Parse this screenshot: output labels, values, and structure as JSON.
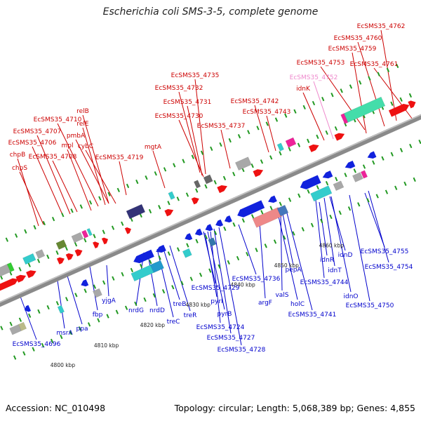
{
  "title": "Escherichia coli SMS-3-5, complete genome",
  "footer": {
    "accession": "Accession: NC_010498",
    "summary": "Topology: circular; Length: 5,068,389 bp; Genes: 4,855"
  },
  "colors": {
    "forward_label": "#cc0000",
    "reverse_label": "#0000cc",
    "highlight_label": "#ee88cc",
    "backbone": "#8a8a8a",
    "tick": "#229922"
  },
  "kbp_ticks": [
    "4800 kbp",
    "4810 kbp",
    "4820 kbp",
    "4830 kbp",
    "4840 kbp",
    "4850 kbp",
    "4860 kbp"
  ],
  "forward_labels": [
    "EcSMS35_4762",
    "EcSMS35_4760",
    "EcSMS35_4759",
    "EcSMS35_4753",
    "EcSMS35_4761",
    "EcSMS35_4752",
    "idnK",
    "EcSMS35_4735",
    "EcSMS35_4732",
    "EcSMS35_4742",
    "EcSMS35_4731",
    "EcSMS35_4743",
    "EcSMS35_4730",
    "EcSMS35_4737",
    "relB",
    "EcSMS35_4710",
    "relE",
    "EcSMS35_4707",
    "pmbA",
    "EcSMS35_4706",
    "mpl",
    "cybC",
    "EcSMS35_4708",
    "EcSMS35_4719",
    "mgtA",
    "chpB",
    "chpS"
  ],
  "reverse_labels": [
    "EcSMS35_4696",
    "msrA",
    "ppa",
    "fbp",
    "yjgA",
    "nrdG",
    "nrdD",
    "treC",
    "treB",
    "treR",
    "EcSMS35_4729",
    "pyrI",
    "pyrB",
    "EcSMS35_4724",
    "EcSMS35_4727",
    "EcSMS35_4728",
    "argF",
    "EcSMS35_4736",
    "valS",
    "holC",
    "EcSMS35_4741",
    "pepA",
    "EcSMS35_4744",
    "idnR",
    "idnT",
    "idnD",
    "idnO",
    "EcSMS35_4750",
    "EcSMS35_4755",
    "EcSMS35_4754"
  ]
}
